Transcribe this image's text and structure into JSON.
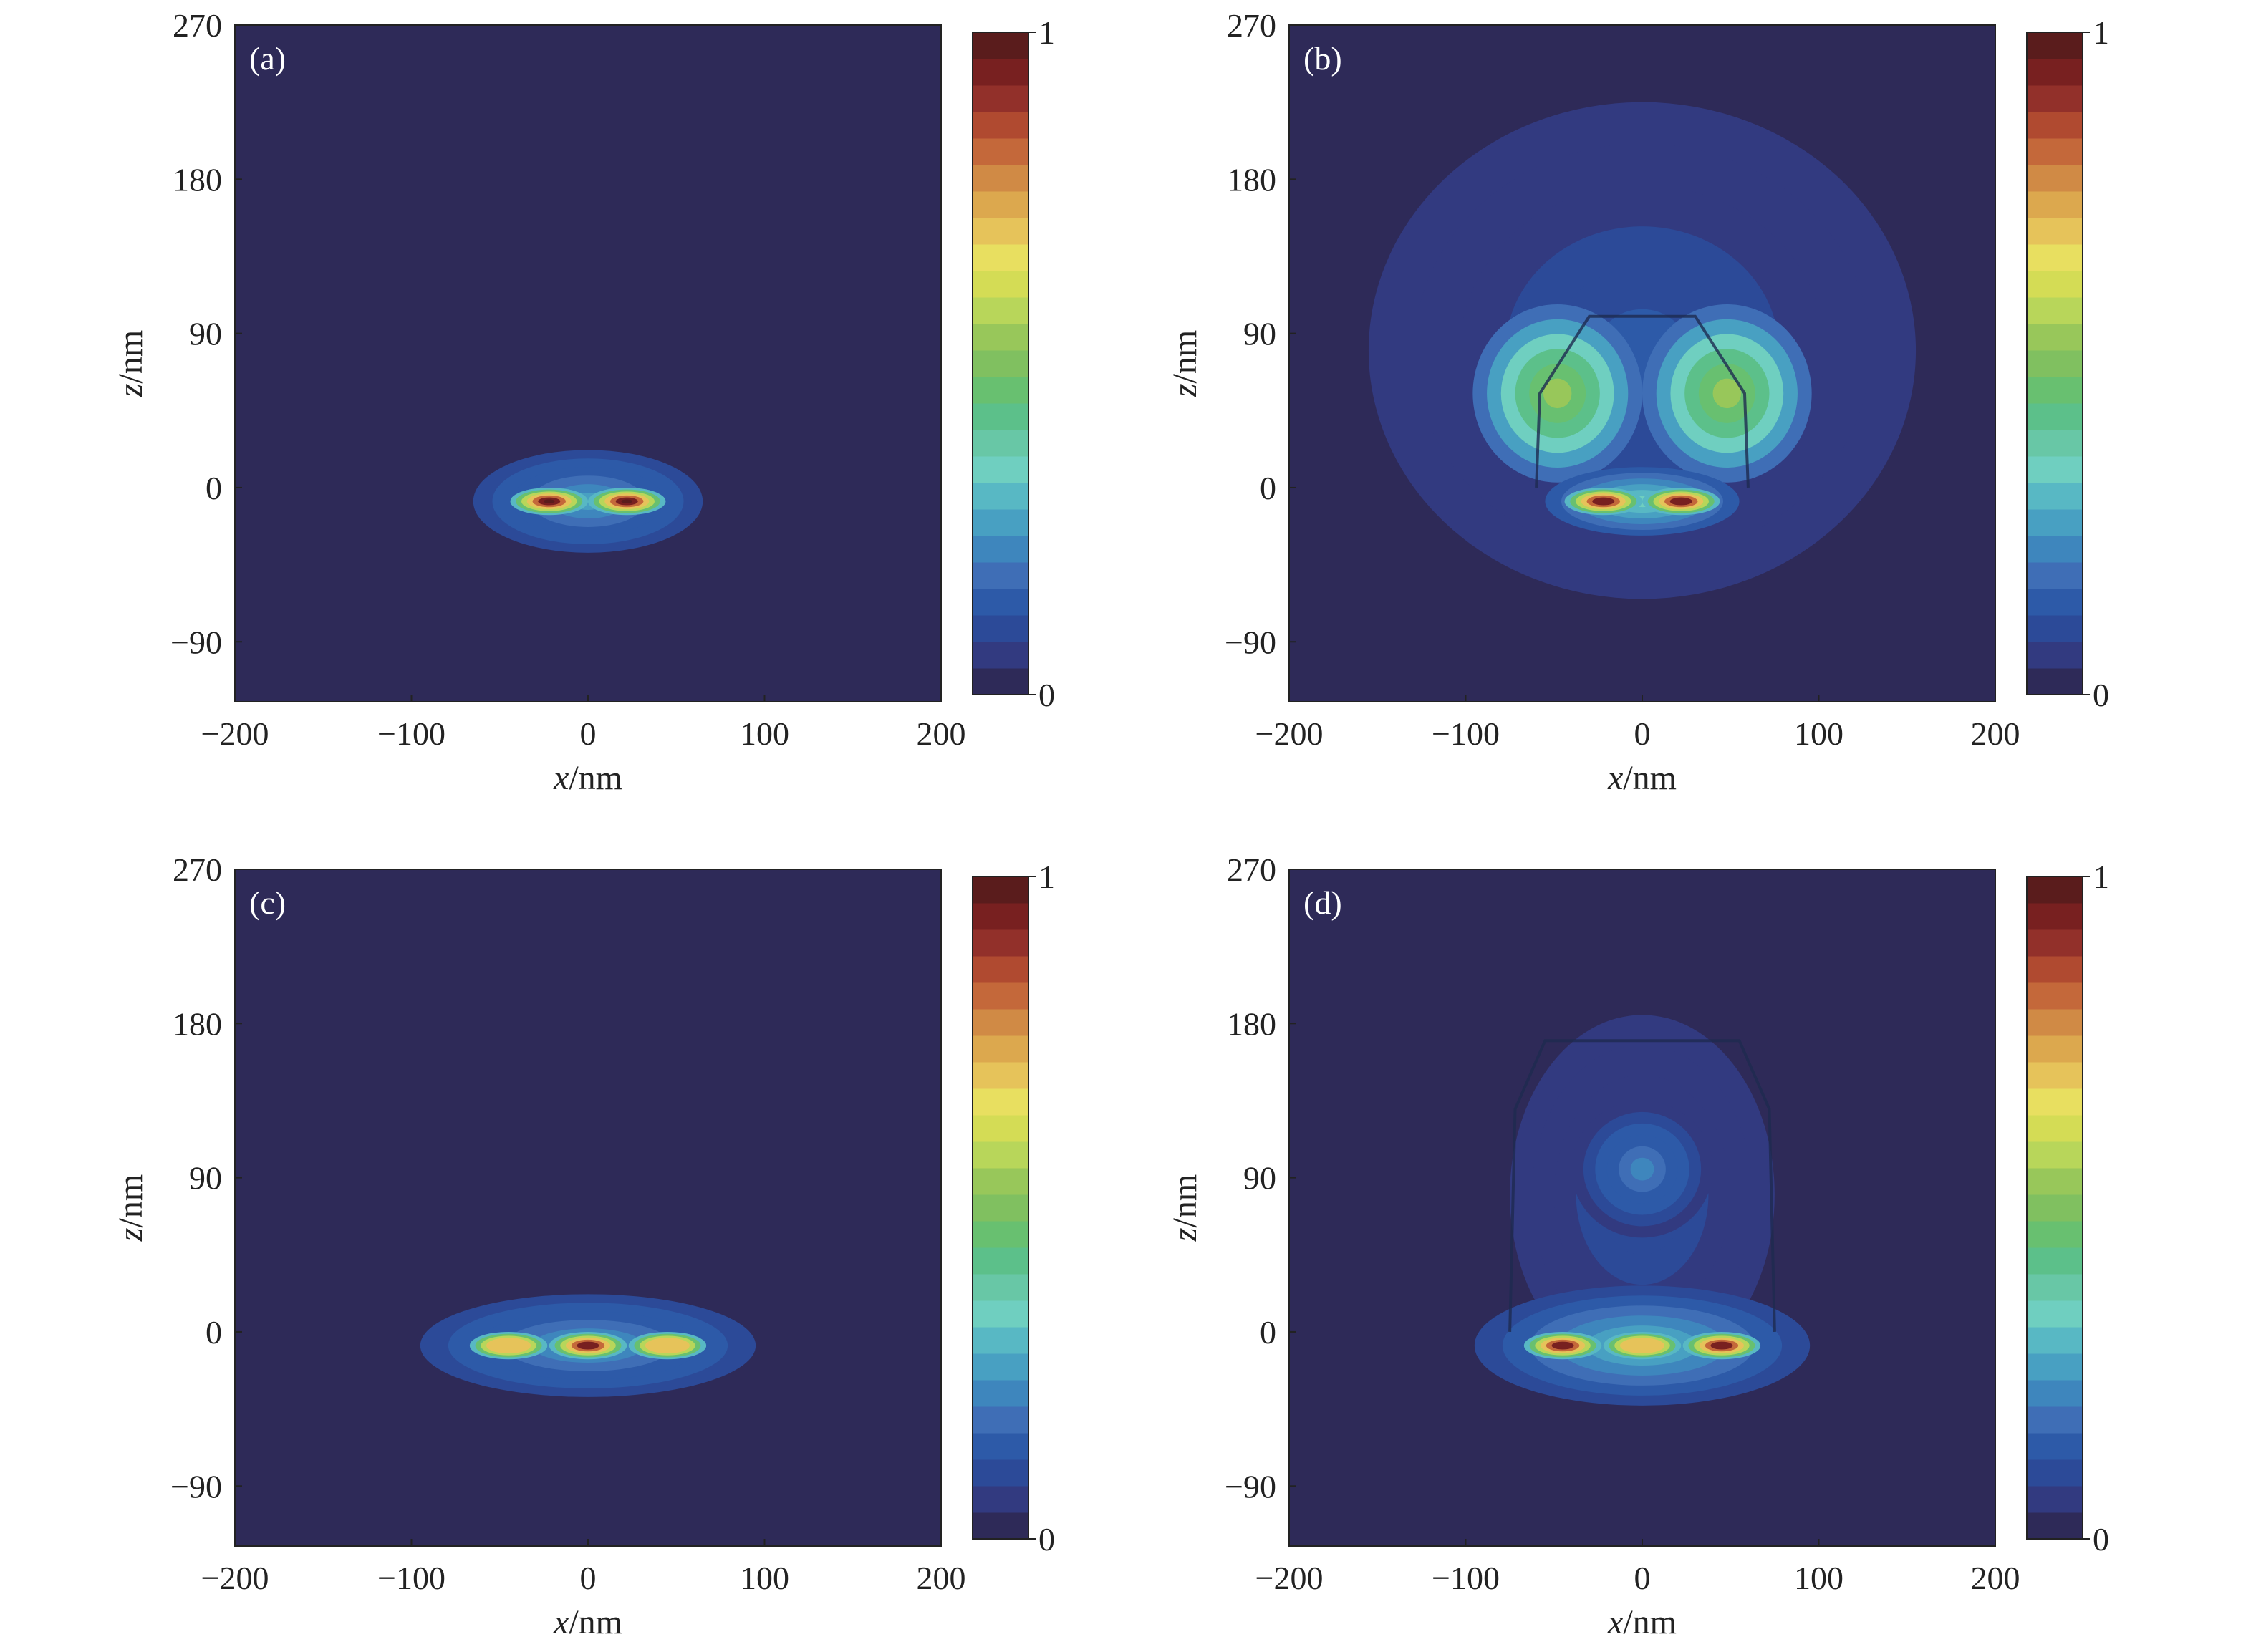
{
  "colormap": [
    "#2e2a58",
    "#323a80",
    "#2c4a98",
    "#2d5aa8",
    "#3f6eb6",
    "#3e86bd",
    "#48a0c2",
    "#58b8c4",
    "#6fcfc0",
    "#68c7a6",
    "#5cc08a",
    "#68c070",
    "#80c060",
    "#98c75a",
    "#b8d65a",
    "#d4dc55",
    "#e8df60",
    "#e6c35a",
    "#dca84e",
    "#d08a45",
    "#c4683a",
    "#b04a30",
    "#92302a",
    "#782020",
    "#5a1c1c"
  ],
  "chart_data": [
    {
      "panel_label": "(a)",
      "type": "heatmap",
      "xlabel_var": "x",
      "xlabel_unit": "/nm",
      "ylabel_var": "z",
      "ylabel_unit": "/nm",
      "xlim": [
        -200,
        200
      ],
      "ylim": [
        -125,
        270
      ],
      "xticks": [
        "−200",
        "−100",
        "0",
        "100",
        "200"
      ],
      "xtick_values": [
        -200,
        -100,
        0,
        100,
        200
      ],
      "yticks": [
        "−90",
        "0",
        "90",
        "180",
        "270"
      ],
      "ytick_values": [
        -90,
        0,
        90,
        180,
        270
      ],
      "colorbar": {
        "min_label": "0",
        "max_label": "1"
      },
      "field": {
        "hotspots": [
          {
            "x": -22,
            "z": -8,
            "value": 0.92
          },
          {
            "x": 22,
            "z": -8,
            "value": 0.92
          }
        ],
        "halo": [
          {
            "x": 0,
            "z": -8,
            "half_width_nm": 65,
            "half_height_nm": 30,
            "value": 0.25
          }
        ],
        "structure_outline": []
      }
    },
    {
      "panel_label": "(b)",
      "type": "heatmap",
      "xlabel_var": "x",
      "xlabel_unit": "/nm",
      "ylabel_var": "z",
      "ylabel_unit": "/nm",
      "xlim": [
        -200,
        200
      ],
      "ylim": [
        -125,
        270
      ],
      "xticks": [
        "−200",
        "−100",
        "0",
        "100",
        "200"
      ],
      "xtick_values": [
        -200,
        -100,
        0,
        100,
        200
      ],
      "yticks": [
        "−90",
        "0",
        "90",
        "180",
        "270"
      ],
      "ytick_values": [
        -90,
        0,
        90,
        180,
        270
      ],
      "colorbar": {
        "min_label": "0",
        "max_label": "1"
      },
      "field": {
        "hotspots": [
          {
            "x": -22,
            "z": -8,
            "value": 0.9
          },
          {
            "x": 22,
            "z": -8,
            "value": 0.9
          }
        ],
        "halo": [
          {
            "x": 0,
            "z": 80,
            "half_width_nm": 155,
            "half_height_nm": 145,
            "value": 0.12
          },
          {
            "x": -48,
            "z": 55,
            "half_width_nm": 48,
            "half_height_nm": 52,
            "value": 0.55
          },
          {
            "x": 48,
            "z": 55,
            "half_width_nm": 48,
            "half_height_nm": 52,
            "value": 0.55
          },
          {
            "x": 0,
            "z": -8,
            "half_width_nm": 55,
            "half_height_nm": 20,
            "value": 0.35
          }
        ],
        "structure_outline": [
          [
            -60,
            0
          ],
          [
            -58,
            55
          ],
          [
            -30,
            100
          ],
          [
            30,
            100
          ],
          [
            58,
            55
          ],
          [
            60,
            0
          ]
        ]
      }
    },
    {
      "panel_label": "(c)",
      "type": "heatmap",
      "xlabel_var": "x",
      "xlabel_unit": "/nm",
      "ylabel_var": "z",
      "ylabel_unit": "/nm",
      "xlim": [
        -200,
        200
      ],
      "ylim": [
        -125,
        270
      ],
      "xticks": [
        "−200",
        "−100",
        "0",
        "100",
        "200"
      ],
      "xtick_values": [
        -200,
        -100,
        0,
        100,
        200
      ],
      "yticks": [
        "−90",
        "0",
        "90",
        "180",
        "270"
      ],
      "ytick_values": [
        -90,
        0,
        90,
        180,
        270
      ],
      "colorbar": {
        "min_label": "0",
        "max_label": "1"
      },
      "field": {
        "hotspots": [
          {
            "x": -45,
            "z": -8,
            "value": 0.7
          },
          {
            "x": 0,
            "z": -8,
            "value": 0.9
          },
          {
            "x": 45,
            "z": -8,
            "value": 0.7
          }
        ],
        "halo": [
          {
            "x": 0,
            "z": -8,
            "half_width_nm": 95,
            "half_height_nm": 30,
            "value": 0.25
          }
        ],
        "structure_outline": []
      }
    },
    {
      "panel_label": "(d)",
      "type": "heatmap",
      "xlabel_var": "x",
      "xlabel_unit": "/nm",
      "ylabel_var": "z",
      "ylabel_unit": "/nm",
      "xlim": [
        -200,
        200
      ],
      "ylim": [
        -125,
        270
      ],
      "xticks": [
        "−200",
        "−100",
        "0",
        "100",
        "200"
      ],
      "xtick_values": [
        -200,
        -100,
        0,
        100,
        200
      ],
      "yticks": [
        "−90",
        "0",
        "90",
        "180",
        "270"
      ],
      "ytick_values": [
        -90,
        0,
        90,
        180,
        270
      ],
      "colorbar": {
        "min_label": "0",
        "max_label": "1"
      },
      "field": {
        "hotspots": [
          {
            "x": -45,
            "z": -8,
            "value": 0.85
          },
          {
            "x": 0,
            "z": -8,
            "value": 0.7
          },
          {
            "x": 45,
            "z": -8,
            "value": 0.85
          }
        ],
        "halo": [
          {
            "x": 0,
            "z": 80,
            "half_width_nm": 75,
            "half_height_nm": 105,
            "value": 0.12
          },
          {
            "x": 0,
            "z": 95,
            "half_width_nm": 40,
            "half_height_nm": 40,
            "value": 0.2
          },
          {
            "x": 0,
            "z": -8,
            "half_width_nm": 95,
            "half_height_nm": 35,
            "value": 0.3
          }
        ],
        "structure_outline": [
          [
            -75,
            0
          ],
          [
            -72,
            130
          ],
          [
            -55,
            170
          ],
          [
            55,
            170
          ],
          [
            72,
            130
          ],
          [
            75,
            0
          ]
        ]
      }
    }
  ]
}
